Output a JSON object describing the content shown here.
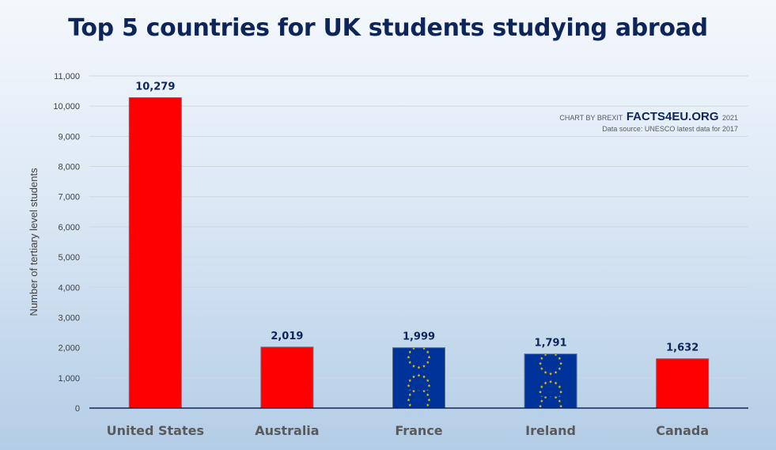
{
  "chart_data": {
    "type": "bar",
    "title": "Top 5 countries for UK students studying abroad",
    "ylabel": "Number of tertiary level students",
    "xlabel": "",
    "categories": [
      "United States",
      "Australia",
      "France",
      "Ireland",
      "Canada"
    ],
    "values": [
      10279,
      2019,
      1999,
      1791,
      1632
    ],
    "data_labels": [
      "10,279",
      "2,019",
      "1,999",
      "1,791",
      "1,632"
    ],
    "ylim": [
      0,
      11000
    ],
    "yticks": [
      0,
      1000,
      2000,
      3000,
      4000,
      5000,
      6000,
      7000,
      8000,
      9000,
      10000,
      11000
    ],
    "ytick_labels": [
      "0",
      "1,000",
      "2,000",
      "3,000",
      "4,000",
      "5,000",
      "6,000",
      "7,000",
      "8,000",
      "9,000",
      "10,000",
      "11,000"
    ],
    "grid": true,
    "bar_fills": [
      "red",
      "red",
      "eu-flag",
      "eu-flag",
      "red"
    ],
    "colors": {
      "red": "#ff0000",
      "eu_blue": "#003399",
      "eu_star": "#ffcc00",
      "title": "#0e2559",
      "axis": "#0e2559"
    }
  },
  "credit": {
    "prefix": "CHART BY BREXIT",
    "brand": "FACTS4EU.ORG",
    "year": "2021",
    "source": "Data source: UNESCO latest data for 2017"
  }
}
